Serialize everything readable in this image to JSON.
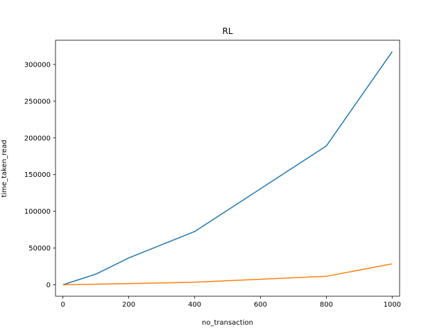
{
  "chart_data": {
    "type": "line",
    "title": "RL",
    "xlabel": "no_transaction",
    "ylabel": "time_taken_read",
    "xlim": [
      -22.5,
      1022.5
    ],
    "ylim": [
      -15600,
      333000
    ],
    "xticks": [
      0,
      200,
      400,
      600,
      800,
      1000
    ],
    "yticks": [
      0,
      50000,
      100000,
      150000,
      200000,
      250000,
      300000
    ],
    "grid": false,
    "series": [
      {
        "color": "#1f77b4",
        "x": [
          0,
          100,
          200,
          400,
          800,
          1000
        ],
        "y": [
          0,
          14500,
          36500,
          72500,
          189000,
          317500
        ]
      },
      {
        "color": "#ff7f0e",
        "x": [
          0,
          100,
          200,
          400,
          800,
          1000
        ],
        "y": [
          0,
          800,
          1600,
          3500,
          11500,
          28500
        ]
      }
    ]
  }
}
